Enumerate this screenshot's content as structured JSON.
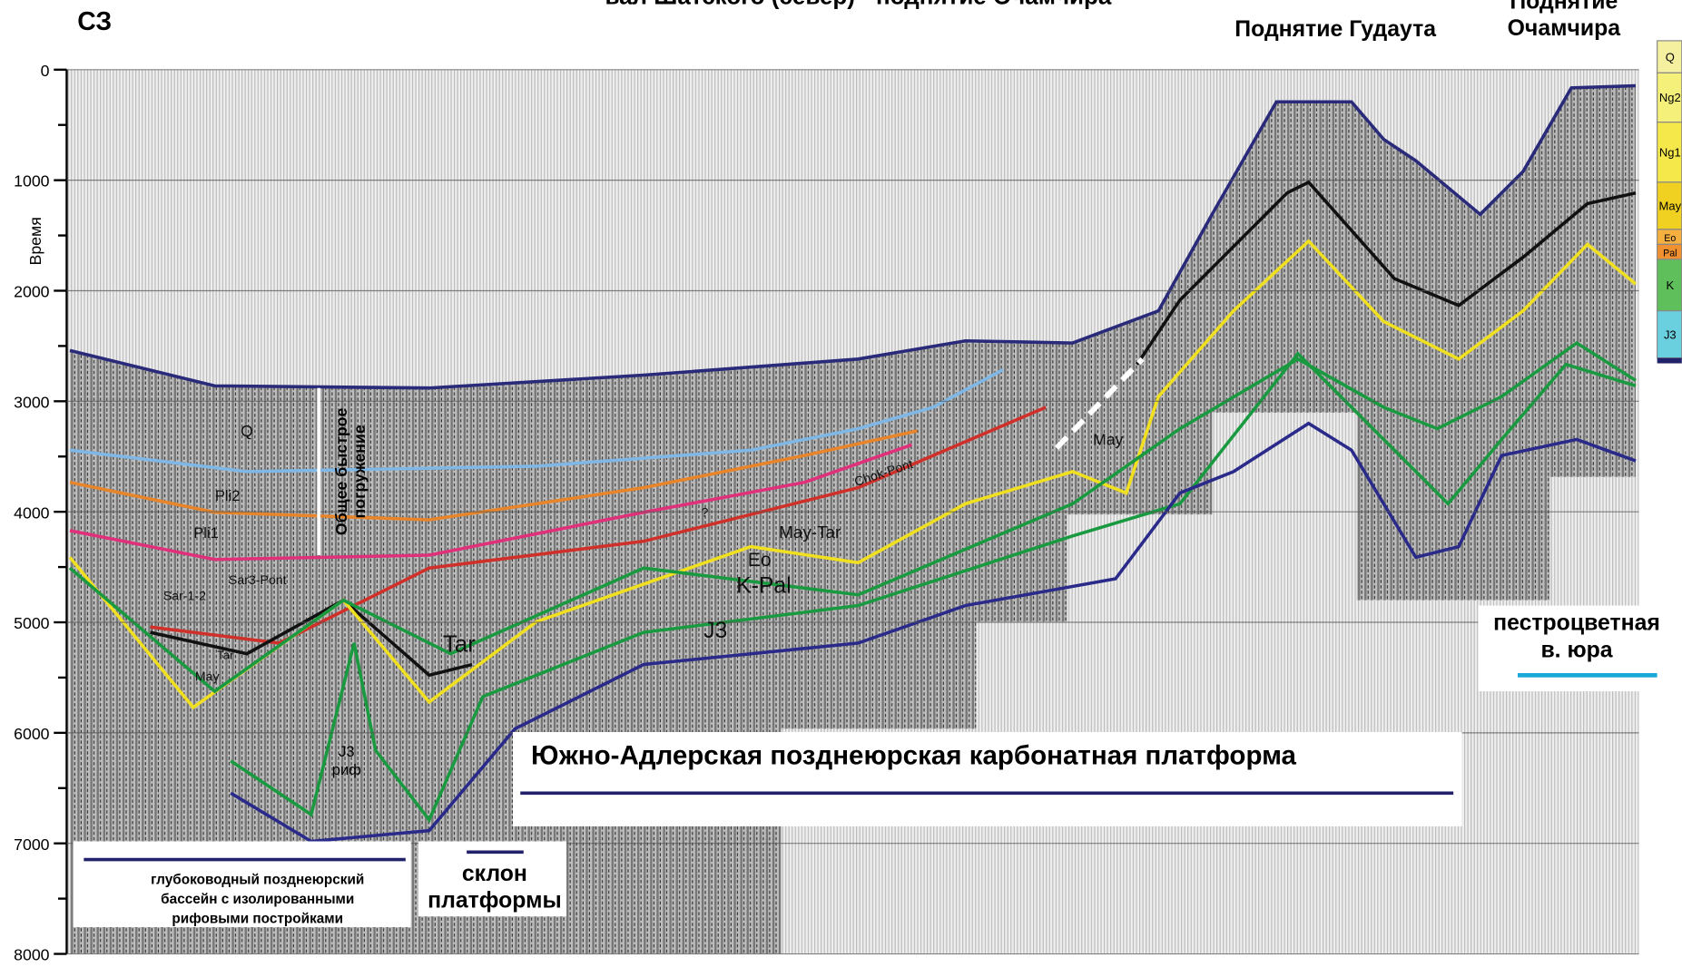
{
  "header": {
    "left": "СЗ",
    "title": "вал Шатского (север) - поднятие Очамчира",
    "uplift1": "Поднятие Гудаута",
    "uplift2": [
      "Поднятие",
      "Очамчира"
    ]
  },
  "axis": {
    "label": "Время",
    "ticks": [
      0,
      1000,
      2000,
      3000,
      4000,
      5000,
      6000,
      7000,
      8000
    ],
    "limit": [
      0,
      8000
    ]
  },
  "horizon_labels": [
    "Q",
    "Pli2",
    "Pli1",
    "Sar3-Pont",
    "Sar-1-2",
    "Tar",
    "May",
    "Tar",
    "Chok-Pont",
    "?",
    "May-Tar",
    "Eo",
    "K-Pal",
    "J3",
    "May"
  ],
  "reef_label": [
    "J3",
    "риф"
  ],
  "subsidence": [
    "Общее быстрое",
    "погружение"
  ],
  "platform": "Южно-Адлерская позднеюрская карбонатная платформа",
  "basin": [
    "глубоководный позднеюрский",
    "бассейн с изолированными",
    "рифовыми постройками"
  ],
  "slope": [
    "склон",
    "платформы"
  ],
  "jura": [
    "пестроцветная",
    "в. юра"
  ],
  "legend_column": [
    "Q",
    "Ng2",
    "Ng1",
    "May",
    "Eo",
    "Pal",
    "K",
    "J3"
  ]
}
